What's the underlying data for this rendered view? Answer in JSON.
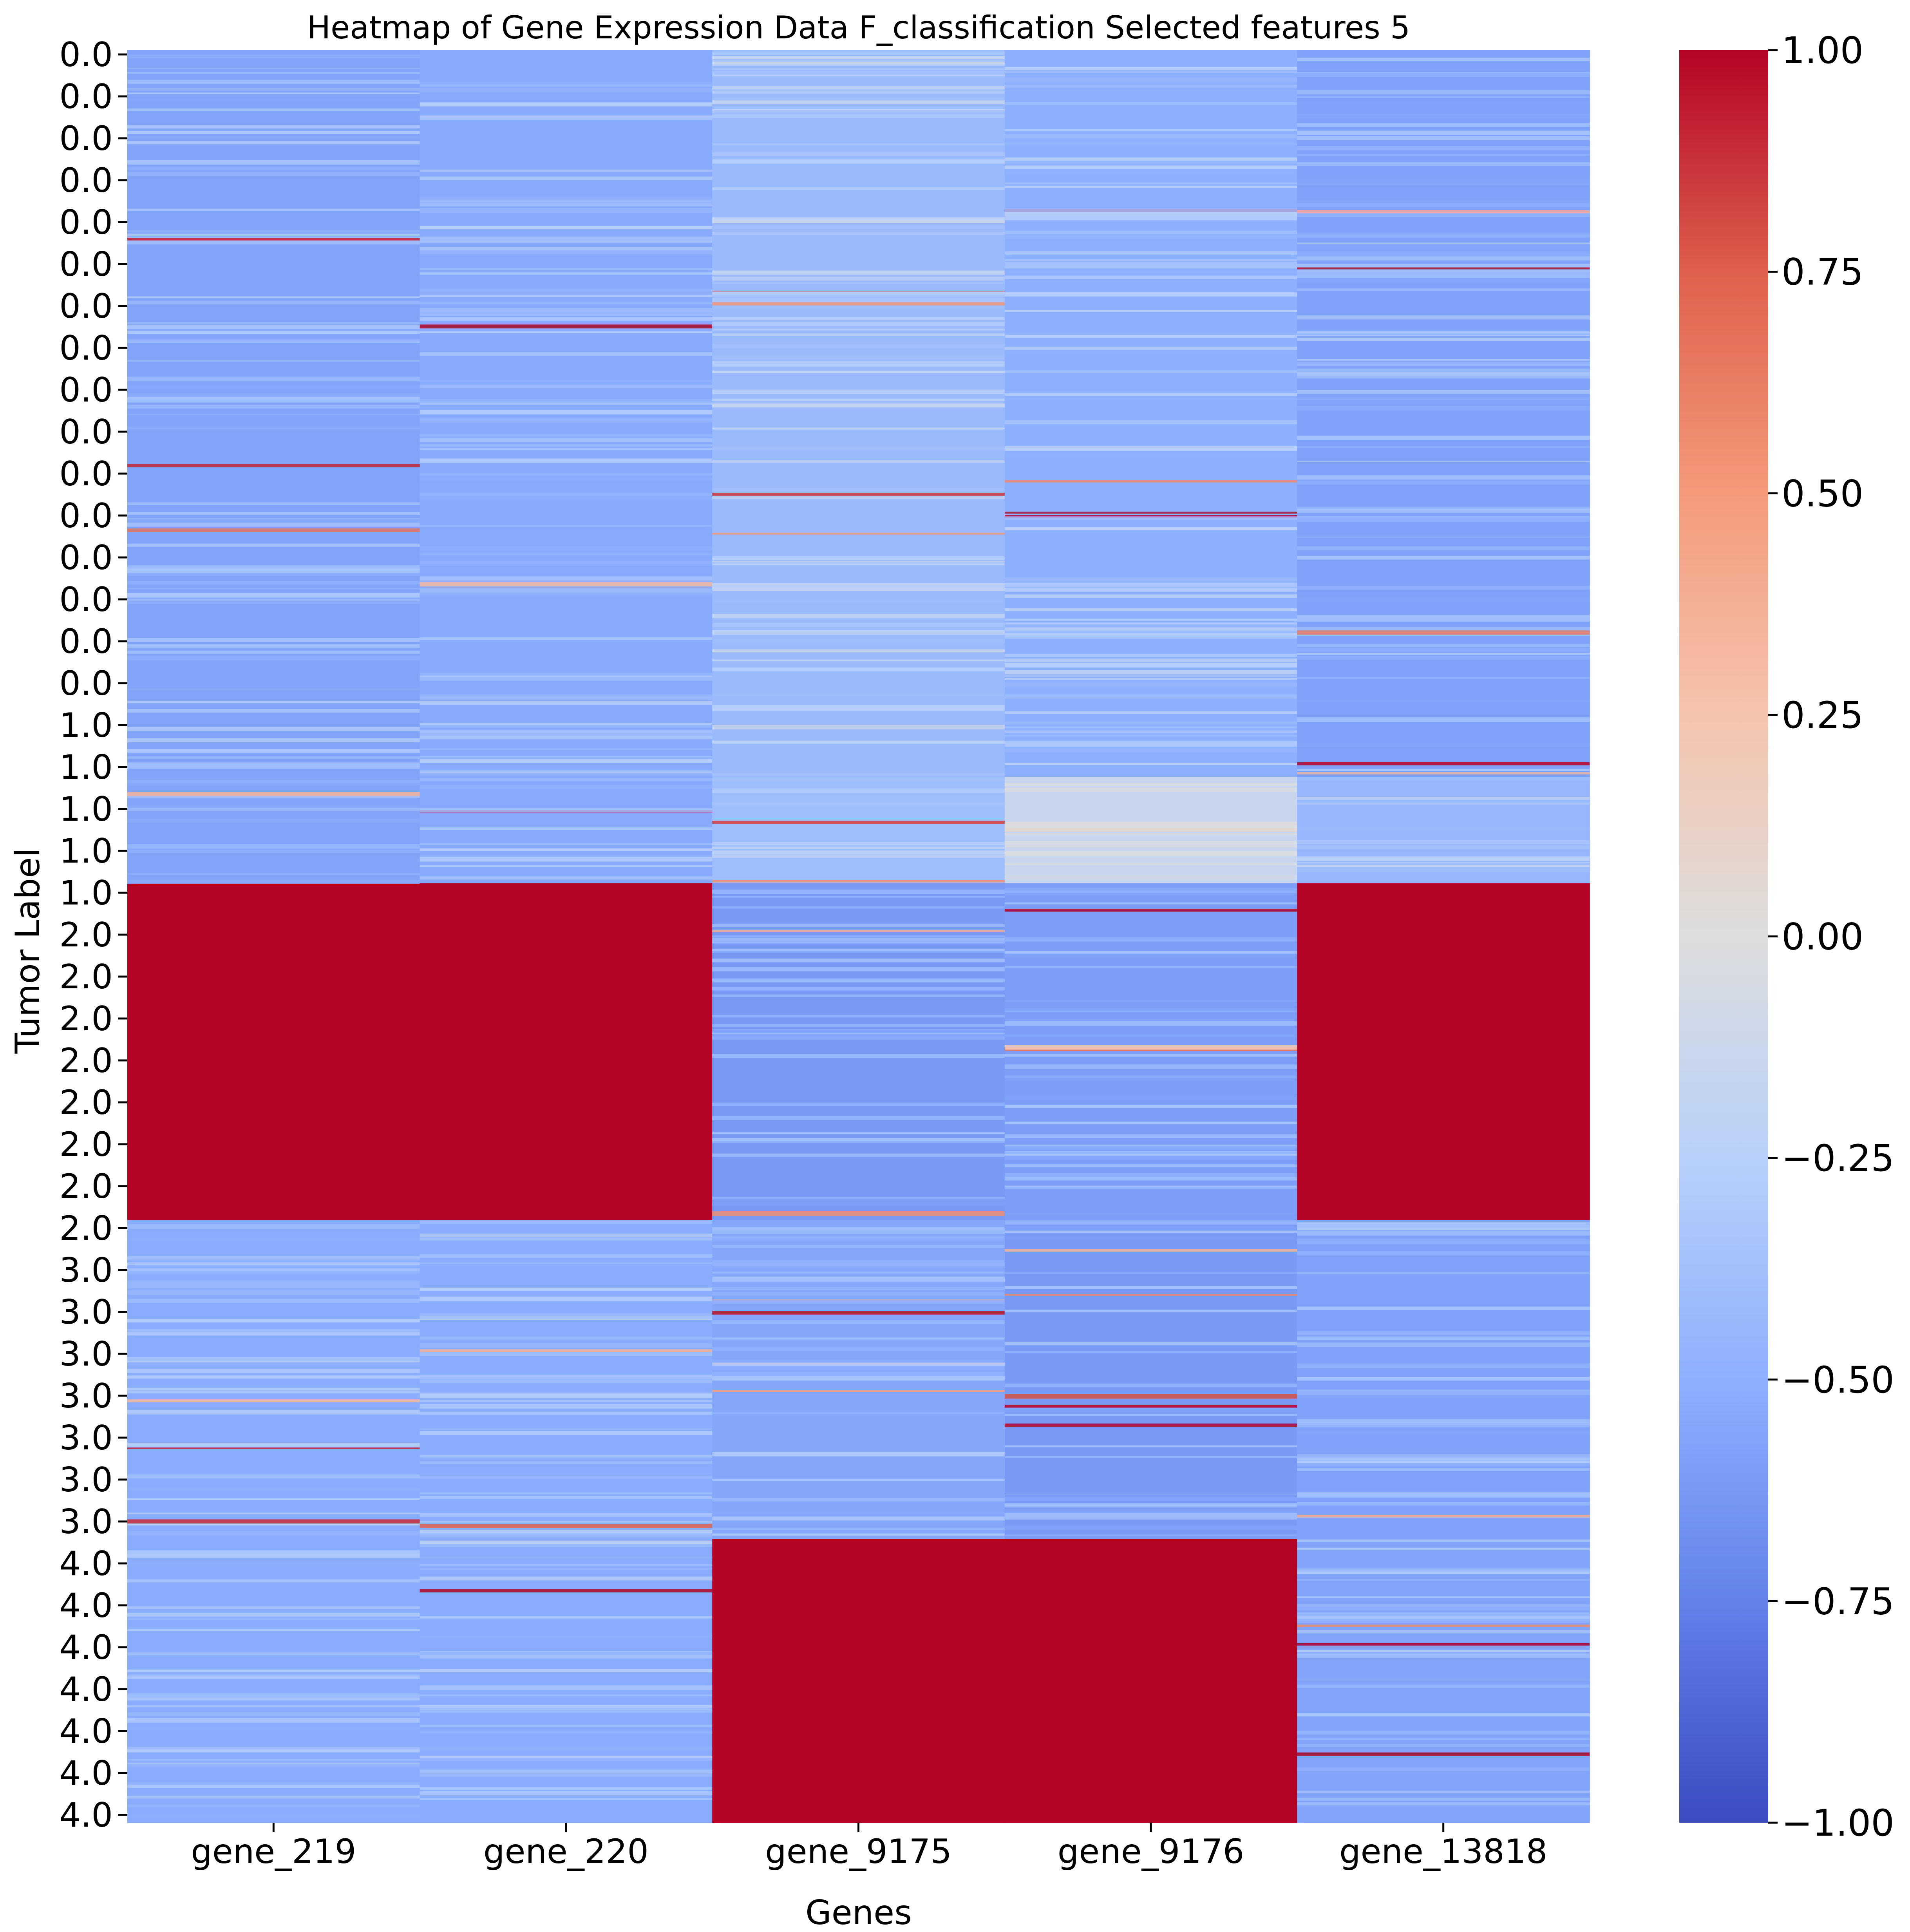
{
  "chart_data": {
    "type": "heatmap",
    "title": "Heatmap of Gene Expression Data F_classification Selected features 5",
    "xlabel": "Genes",
    "ylabel": "Tumor Label",
    "columns": [
      "gene_219",
      "gene_220",
      "gene_9175",
      "gene_9176",
      "gene_13818"
    ],
    "y_tick_labels": [
      "0.0",
      "0.0",
      "0.0",
      "0.0",
      "0.0",
      "0.0",
      "0.0",
      "0.0",
      "0.0",
      "0.0",
      "0.0",
      "0.0",
      "0.0",
      "0.0",
      "0.0",
      "0.0",
      "1.0",
      "1.0",
      "1.0",
      "1.0",
      "1.0",
      "2.0",
      "2.0",
      "2.0",
      "2.0",
      "2.0",
      "2.0",
      "2.0",
      "2.0",
      "3.0",
      "3.0",
      "3.0",
      "3.0",
      "3.0",
      "3.0",
      "3.0",
      "4.0",
      "4.0",
      "4.0",
      "4.0",
      "4.0",
      "4.0",
      "4.0"
    ],
    "colormap": "coolwarm",
    "color_range": [
      -1.0,
      1.0
    ],
    "colorbar_ticks": [
      "1.00",
      "0.75",
      "0.50",
      "0.25",
      "0.00",
      "−0.25",
      "−0.50",
      "−0.75",
      "−1.00"
    ],
    "colorbar_tick_values": [
      1.0,
      0.75,
      0.5,
      0.25,
      0.0,
      -0.25,
      -0.5,
      -0.75,
      -1.0
    ],
    "blocks": [
      {
        "label": "0.0",
        "row_fraction": 0.41,
        "values": [
          -0.57,
          -0.53,
          -0.42,
          -0.5,
          -0.58
        ]
      },
      {
        "label": "1.0",
        "row_fraction": 0.06,
        "values": [
          -0.57,
          -0.53,
          -0.4,
          -0.15,
          -0.45
        ]
      },
      {
        "label": "2.0",
        "row_fraction": 0.19,
        "values": [
          1.0,
          1.0,
          -0.62,
          -0.6,
          1.0
        ]
      },
      {
        "label": "3.0",
        "row_fraction": 0.18,
        "values": [
          -0.52,
          -0.52,
          -0.55,
          -0.62,
          -0.58
        ]
      },
      {
        "label": "4.0",
        "row_fraction": 0.16,
        "values": [
          -0.52,
          -0.52,
          1.0,
          1.0,
          -0.57
        ]
      }
    ]
  }
}
